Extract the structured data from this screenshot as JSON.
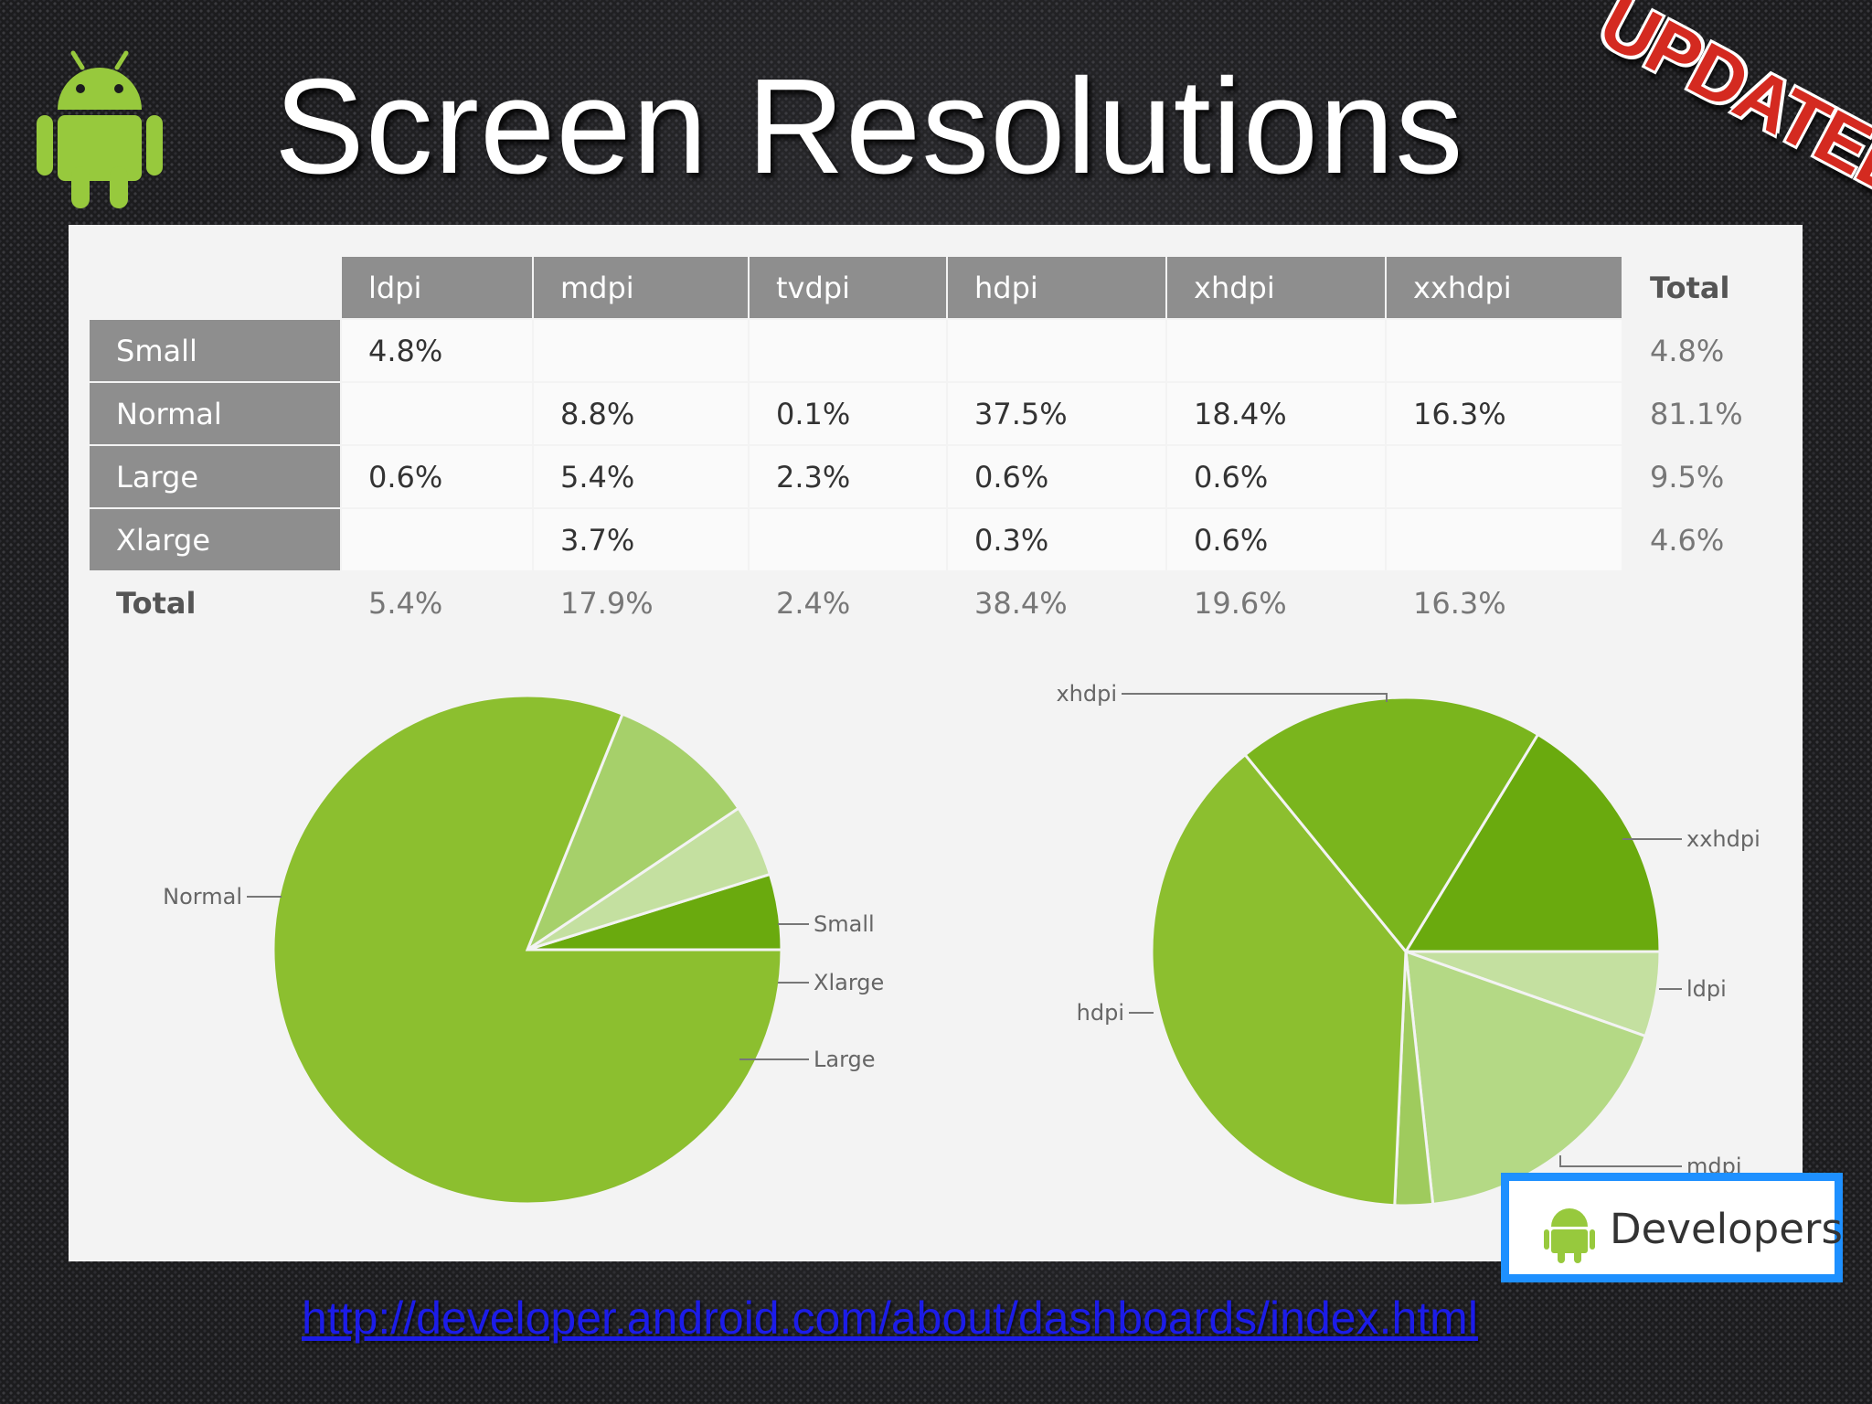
{
  "slide": {
    "title": "Screen Resolutions",
    "stamp": "UPDATED",
    "link": "http://developer.android.com/about/dashboards/index.html",
    "badge_label": "Developers"
  },
  "table": {
    "columns": [
      "ldpi",
      "mdpi",
      "tvdpi",
      "hdpi",
      "xhdpi",
      "xxhdpi"
    ],
    "total_label": "Total",
    "rows": [
      {
        "label": "Small",
        "cells": [
          "4.8%",
          "",
          "",
          "",
          "",
          ""
        ],
        "total": "4.8%"
      },
      {
        "label": "Normal",
        "cells": [
          "",
          "8.8%",
          "0.1%",
          "37.5%",
          "18.4%",
          "16.3%"
        ],
        "total": "81.1%"
      },
      {
        "label": "Large",
        "cells": [
          "0.6%",
          "5.4%",
          "2.3%",
          "0.6%",
          "0.6%",
          ""
        ],
        "total": "9.5%"
      },
      {
        "label": "Xlarge",
        "cells": [
          "",
          "3.7%",
          "",
          "0.3%",
          "0.6%",
          ""
        ],
        "total": "4.6%"
      }
    ],
    "totals": [
      "5.4%",
      "17.9%",
      "2.4%",
      "38.4%",
      "19.6%",
      "16.3%"
    ]
  },
  "chart_data": [
    {
      "type": "pie",
      "name": "screen-size",
      "categories": [
        "Small",
        "Xlarge",
        "Large",
        "Normal"
      ],
      "values": [
        4.8,
        4.6,
        9.5,
        81.1
      ],
      "colors": [
        "#6aaa0e",
        "#c4e0a0",
        "#a6d06a",
        "#8cbf2f"
      ]
    },
    {
      "type": "pie",
      "name": "screen-density",
      "categories": [
        "xxhdpi",
        "ldpi",
        "mdpi",
        "tvdpi",
        "hdpi",
        "xhdpi"
      ],
      "values": [
        16.3,
        5.4,
        17.9,
        2.4,
        38.4,
        19.6
      ],
      "colors": [
        "#6aaa0e",
        "#c4e0a0",
        "#b4d985",
        "#9fcb5d",
        "#8cbf2f",
        "#7ab51d"
      ],
      "labels_shown": [
        "xxhdpi",
        "ldpi",
        "mdpi",
        "hdpi",
        "xhdpi"
      ]
    }
  ]
}
